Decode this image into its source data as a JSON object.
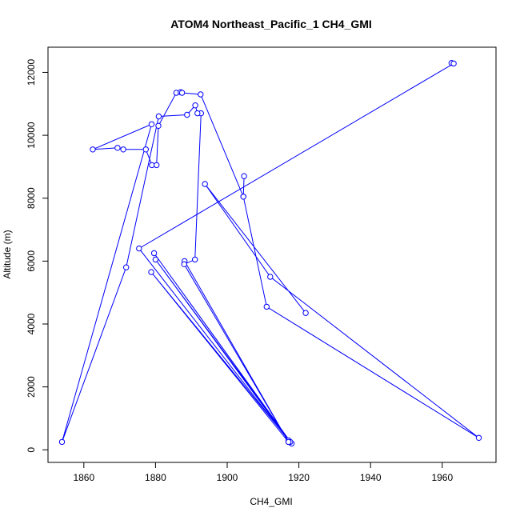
{
  "chart_data": {
    "type": "line",
    "title": "ATOM4 Northeast_Pacific_1 CH4_GMI",
    "xlabel": "CH4_GMI",
    "ylabel": "Altitude (m)",
    "xlim": [
      1850,
      1975
    ],
    "ylim": [
      -400,
      12800
    ],
    "xticks": [
      1860,
      1880,
      1900,
      1920,
      1940,
      1960
    ],
    "yticks": [
      0,
      2000,
      4000,
      6000,
      8000,
      10000,
      12000
    ],
    "xtick_labels": [
      "1860",
      "1880",
      "1900",
      "1920",
      "1940",
      "1960"
    ],
    "ytick_labels": [
      "0",
      "2000",
      "4000",
      "6000",
      "8000",
      "10000",
      "12000"
    ],
    "grid": false,
    "legend": "none",
    "series": [
      {
        "color": "#0000ff",
        "marker": "open-circle",
        "x": [
          1962.6,
          1963.2,
          1875.4,
          1917.1,
          1880.0,
          1918.0,
          1879.6,
          1917.6,
          1878.8,
          1917.1,
          1888.1,
          1917.1,
          1888.0,
          1891.0,
          1892.7,
          1891.7,
          1891.1,
          1888.8,
          1880.9,
          1871.8,
          1853.9,
          1878.9,
          1862.5,
          1869.4,
          1871.0,
          1877.3,
          1879.0,
          1880.3,
          1880.8,
          1885.8,
          1887.0,
          1887.4,
          1892.6,
          1904.5,
          1904.7,
          1904.5,
          1911.0,
          1970.2,
          1912.0,
          1893.8,
          1921.9
        ],
        "y": [
          12300,
          12280,
          6400,
          300,
          6050,
          200,
          6250,
          250,
          5650,
          250,
          6000,
          250,
          5900,
          6050,
          10700,
          10700,
          10950,
          10650,
          10600,
          5800,
          250,
          10350,
          9550,
          9600,
          9550,
          9550,
          9050,
          9050,
          10300,
          11350,
          11370,
          11350,
          11300,
          8050,
          8700,
          8050,
          4550,
          380,
          5500,
          8450,
          4350
        ]
      }
    ]
  }
}
